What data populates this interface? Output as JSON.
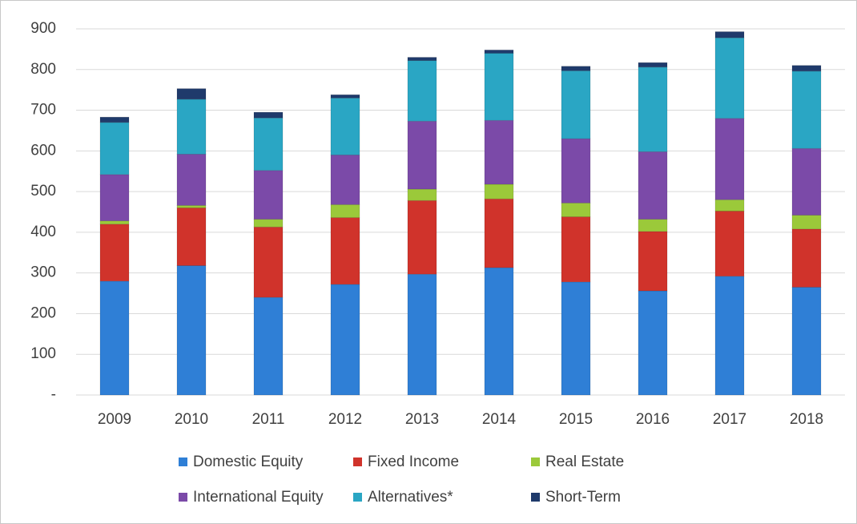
{
  "chart_data": {
    "type": "stacked_bar",
    "categories": [
      "2009",
      "2010",
      "2011",
      "2012",
      "2013",
      "2014",
      "2015",
      "2016",
      "2017",
      "2018"
    ],
    "series": [
      {
        "name": "Domestic Equity",
        "color": "#2f7fd6",
        "values": [
          280,
          318,
          240,
          272,
          297,
          313,
          278,
          256,
          292,
          265
        ]
      },
      {
        "name": "Fixed Income",
        "color": "#d0332b",
        "values": [
          140,
          142,
          173,
          164,
          181,
          169,
          160,
          146,
          160,
          143
        ]
      },
      {
        "name": "Real Estate",
        "color": "#9bc93a",
        "values": [
          8,
          6,
          19,
          32,
          28,
          36,
          34,
          30,
          28,
          34
        ]
      },
      {
        "name": "International Equity",
        "color": "#7b4aa8",
        "values": [
          114,
          126,
          120,
          122,
          167,
          157,
          158,
          166,
          200,
          164
        ]
      },
      {
        "name": "Alternatives*",
        "color": "#2aa6c4",
        "values": [
          128,
          135,
          129,
          140,
          149,
          165,
          167,
          208,
          198,
          190
        ]
      },
      {
        "name": "Short-Term",
        "color": "#1f3a6b",
        "values": [
          13,
          26,
          14,
          8,
          8,
          8,
          11,
          11,
          15,
          14
        ]
      }
    ],
    "ylim": [
      0,
      900
    ],
    "yticks": [
      {
        "value": 0,
        "label": "-"
      },
      100,
      200,
      300,
      400,
      500,
      600,
      700,
      800,
      900
    ],
    "grid": true
  }
}
